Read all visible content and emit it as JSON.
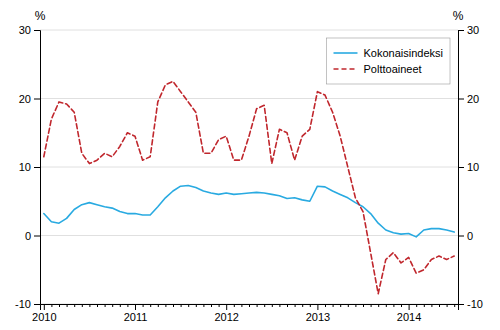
{
  "chart_data": {
    "type": "line",
    "y_label": "%",
    "y2_label": "%",
    "categories": [
      "2010",
      null,
      null,
      null,
      null,
      null,
      null,
      null,
      null,
      null,
      null,
      null,
      "2011",
      null,
      null,
      null,
      null,
      null,
      null,
      null,
      null,
      null,
      null,
      null,
      "2012",
      null,
      null,
      null,
      null,
      null,
      null,
      null,
      null,
      null,
      null,
      null,
      "2013",
      null,
      null,
      null,
      null,
      null,
      null,
      null,
      null,
      null,
      null,
      null,
      "2014",
      null,
      null,
      null,
      null,
      null,
      null
    ],
    "series": [
      {
        "name": "Kokonaisindeksi",
        "color": "#29aae1",
        "line_style": "solid",
        "values": [
          3.2,
          2.0,
          1.8,
          2.5,
          3.8,
          4.5,
          4.8,
          4.5,
          4.2,
          4.0,
          3.5,
          3.2,
          3.2,
          3.0,
          3.0,
          4.2,
          5.5,
          6.5,
          7.2,
          7.3,
          7.0,
          6.5,
          6.2,
          6.0,
          6.2,
          6.0,
          6.1,
          6.2,
          6.3,
          6.2,
          6.0,
          5.8,
          5.4,
          5.5,
          5.2,
          5.0,
          7.2,
          7.1,
          6.5,
          6.0,
          5.5,
          4.8,
          4.2,
          3.2,
          1.8,
          0.8,
          0.4,
          0.2,
          0.3,
          -0.2,
          0.8,
          1.0,
          1.0,
          0.8,
          0.5
        ]
      },
      {
        "name": "Polttoaineet",
        "color": "#c0272d",
        "line_style": "dashed",
        "values": [
          11.5,
          17.0,
          19.5,
          19.2,
          18.0,
          12.0,
          10.5,
          11.0,
          12.0,
          11.5,
          13.0,
          15.0,
          14.5,
          11.0,
          11.5,
          19.5,
          22.0,
          22.5,
          21.0,
          19.5,
          18.0,
          12.0,
          12.0,
          14.0,
          14.5,
          11.0,
          11.0,
          14.5,
          18.5,
          19.0,
          10.5,
          15.5,
          15.0,
          11.0,
          14.5,
          15.5,
          21.0,
          20.5,
          18.0,
          14.5,
          10.0,
          5.5,
          3.5,
          -2.5,
          -8.5,
          -3.5,
          -2.5,
          -4.0,
          -3.2,
          -5.5,
          -5.0,
          -3.5,
          -3.0,
          -3.5,
          -3.0
        ]
      }
    ],
    "ylim": [
      -10,
      30
    ],
    "yticks": [
      -10,
      0,
      10,
      20,
      30
    ],
    "y2lim": [
      -10,
      30
    ],
    "y2ticks": [
      -10,
      0,
      10,
      20,
      30
    ],
    "grid": true,
    "legend": "top-right"
  }
}
